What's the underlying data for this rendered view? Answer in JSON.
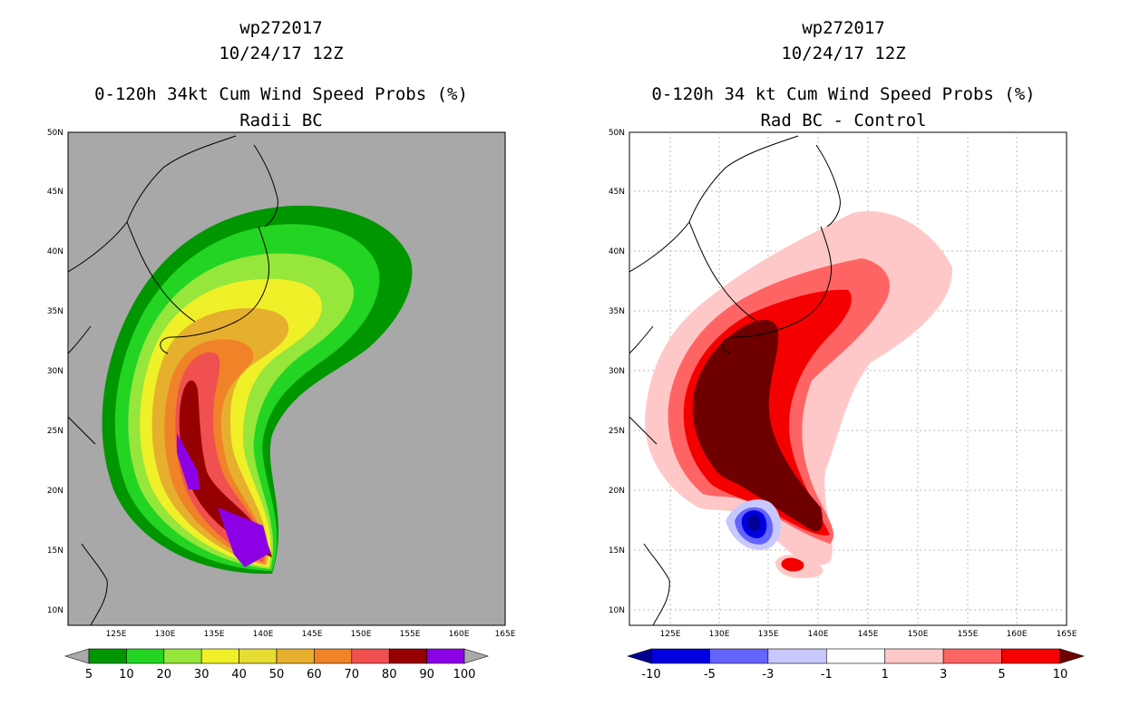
{
  "chart_data": [
    {
      "type": "map-contour",
      "title": [
        "wp272017",
        "10/24/17 12Z",
        "0-120h 34kt Cum Wind Speed Probs (%)",
        "Radii BC"
      ],
      "x_ticks": [
        "125E",
        "130E",
        "135E",
        "140E",
        "145E",
        "150E",
        "155E",
        "160E",
        "165E"
      ],
      "y_ticks": [
        "10N",
        "15N",
        "20N",
        "25N",
        "30N",
        "35N",
        "40N",
        "45N",
        "50N"
      ],
      "xlim": [
        121,
        165
      ],
      "ylim": [
        8.5,
        50
      ],
      "colorbar": {
        "labels": [
          "5",
          "10",
          "20",
          "30",
          "40",
          "50",
          "60",
          "70",
          "80",
          "90",
          "100"
        ],
        "colors": [
          "#009600",
          "#23d423",
          "#96e63c",
          "#f0f028",
          "#e6dc32",
          "#e6af2d",
          "#f08228",
          "#f05050",
          "#960000",
          "#8c00e6"
        ],
        "under_color": "#aaaaaa",
        "over_color": "#aaaaaa"
      },
      "background": "#a8a8a8"
    },
    {
      "type": "map-contour",
      "title": [
        "wp272017",
        "10/24/17 12Z",
        "0-120h 34 kt Cum Wind Speed Probs (%)",
        "Rad BC - Control"
      ],
      "x_ticks": [
        "125E",
        "130E",
        "135E",
        "140E",
        "145E",
        "150E",
        "155E",
        "160E",
        "165E"
      ],
      "y_ticks": [
        "10N",
        "15N",
        "20N",
        "25N",
        "30N",
        "35N",
        "40N",
        "45N",
        "50N"
      ],
      "xlim": [
        121,
        165
      ],
      "ylim": [
        8.5,
        50
      ],
      "colorbar": {
        "labels": [
          "-10",
          "-5",
          "-3",
          "-1",
          "1",
          "3",
          "5",
          "10"
        ],
        "colors": [
          "#0000e0",
          "#6464ff",
          "#c8c8ff",
          "#ffffff",
          "#ffc8c8",
          "#ff6464",
          "#f50000"
        ],
        "under_color": "#000096",
        "over_color": "#6e0000"
      },
      "background": "#ffffff"
    }
  ]
}
